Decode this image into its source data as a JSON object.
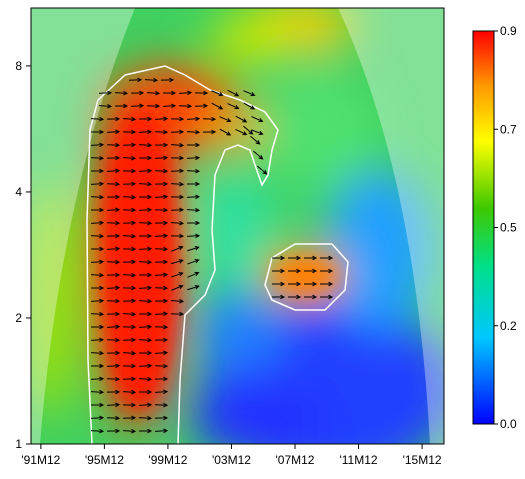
{
  "chart_data": {
    "type": "heatmap",
    "subtype": "wavelet-coherence",
    "title": "",
    "xlabel": "",
    "ylabel": "",
    "x_tick_labels": [
      "'91M12",
      "'95M12",
      "'99M12",
      "'03M12",
      "'07M12",
      "'11M12",
      "'15M12"
    ],
    "x_tick_values": [
      1991.92,
      1995.92,
      1999.92,
      2003.92,
      2007.92,
      2011.92,
      2015.92
    ],
    "xlim": [
      1991.3,
      2017.3
    ],
    "y_scale": "log2",
    "y_tick_labels": [
      "1",
      "2",
      "4",
      "8"
    ],
    "y_tick_values": [
      1,
      2,
      4,
      8
    ],
    "ylim": [
      1,
      11
    ],
    "colorbar": {
      "tick_labels": [
        "0.0",
        "0.2",
        "0.5",
        "0.7",
        "0.9"
      ],
      "tick_values": [
        0.0,
        0.225,
        0.45,
        0.675,
        0.9
      ],
      "range": [
        0.0,
        0.9
      ],
      "colors": [
        "#0000ff",
        "#00c8ff",
        "#00e08a",
        "#3ec800",
        "#ffff00",
        "#ff9900",
        "#ff0000"
      ]
    },
    "significance_regions": [
      {
        "name": "main",
        "x_range": [
          1995.3,
          2005.5
        ],
        "period_range": [
          1,
          7.8
        ],
        "coherence": 0.88
      },
      {
        "name": "island",
        "x_range": [
          2006.0,
          2010.8
        ],
        "period_range": [
          2.05,
          3.0
        ],
        "coherence": 0.85
      }
    ],
    "phase_arrows": "mostly pointing right (in-phase) inside significant regions",
    "cone_of_influence": true,
    "grid": false,
    "legend_position": "right colorbar"
  }
}
